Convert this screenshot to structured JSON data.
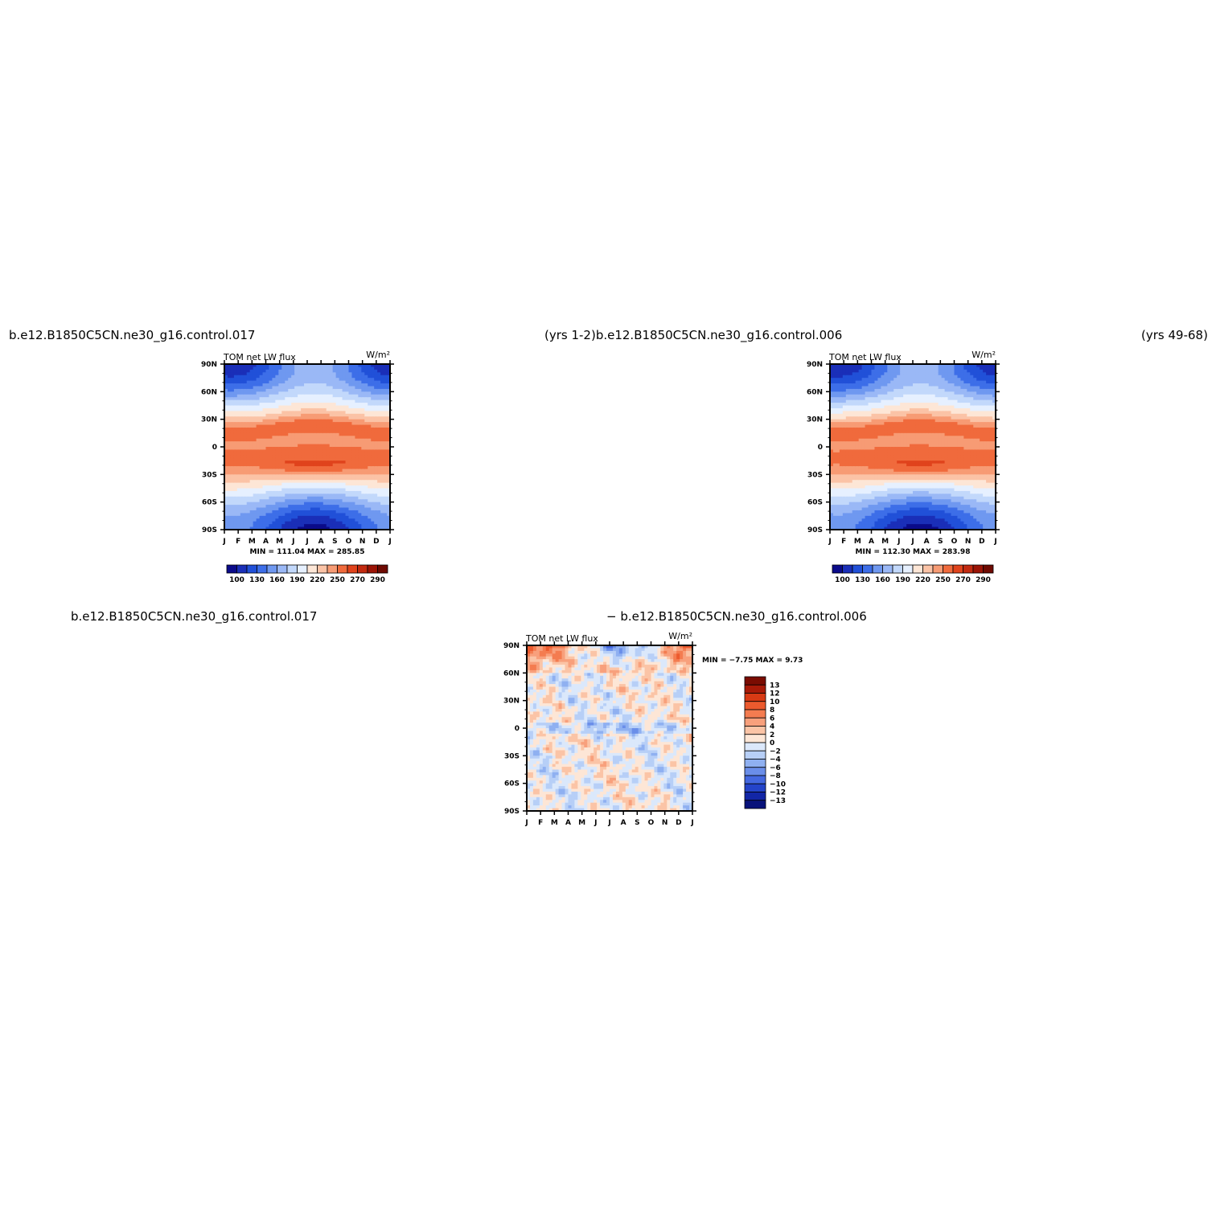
{
  "titles": {
    "top_left": "b.e12.B1850C5CN.ne30_g16.control.017",
    "top_mid": "(yrs  1-2)b.e12.B1850C5CN.ne30_g16.control.006",
    "top_right": "(yrs  49-68)",
    "bottom_left": "b.e12.B1850C5CN.ne30_g16.control.017",
    "bottom_mid": "−  b.e12.B1850C5CN.ne30_g16.control.006"
  },
  "chart_data": [
    {
      "id": "panel-a",
      "type": "heatmap",
      "title": "TOM net LW flux",
      "units": "W/m²",
      "xlabel": "",
      "ylabel": "",
      "x_ticks": [
        "J",
        "F",
        "M",
        "A",
        "M",
        "J",
        "J",
        "A",
        "S",
        "O",
        "N",
        "D",
        "J"
      ],
      "y_ticks": [
        "90N",
        "60N",
        "30N",
        "0",
        "30S",
        "60S",
        "90S"
      ],
      "ylim": [
        -90,
        90
      ],
      "stats": "MIN = 111.04 MAX = 285.85",
      "min": 111.04,
      "max": 285.85,
      "colorbar": {
        "levels": [
          100,
          115,
          130,
          145,
          160,
          175,
          190,
          205,
          220,
          235,
          250,
          265,
          270,
          280,
          290
        ],
        "labels": [
          "100",
          "130",
          "160",
          "190",
          "220",
          "250",
          "270",
          "290"
        ],
        "colors": [
          "#0b0b8a",
          "#1a2fb8",
          "#2150d8",
          "#3d6ee8",
          "#6f98f0",
          "#9ab8f6",
          "#c2d8fb",
          "#e6f0ff",
          "#fde6d6",
          "#fbc3a6",
          "#f79b74",
          "#f06a3c",
          "#e0431c",
          "#c22a10",
          "#9b1406",
          "#6e0a02"
        ]
      }
    },
    {
      "id": "panel-b",
      "type": "heatmap",
      "title": "TOM net LW flux",
      "units": "W/m²",
      "xlabel": "",
      "ylabel": "",
      "x_ticks": [
        "J",
        "F",
        "M",
        "A",
        "M",
        "J",
        "J",
        "A",
        "S",
        "O",
        "N",
        "D",
        "J"
      ],
      "y_ticks": [
        "90N",
        "60N",
        "30N",
        "0",
        "30S",
        "60S",
        "90S"
      ],
      "ylim": [
        -90,
        90
      ],
      "stats": "MIN = 112.30 MAX = 283.98",
      "min": 112.3,
      "max": 283.98,
      "colorbar": {
        "labels": [
          "100",
          "130",
          "160",
          "190",
          "220",
          "250",
          "270",
          "290"
        ]
      }
    },
    {
      "id": "panel-diff",
      "type": "heatmap",
      "title": "TOM net LW flux",
      "units": "W/m²",
      "xlabel": "",
      "ylabel": "",
      "x_ticks": [
        "J",
        "F",
        "M",
        "A",
        "M",
        "J",
        "J",
        "A",
        "S",
        "O",
        "N",
        "D",
        "J"
      ],
      "y_ticks": [
        "90N",
        "60N",
        "30N",
        "0",
        "30S",
        "60S",
        "90S"
      ],
      "ylim": [
        -90,
        90
      ],
      "stats": "MIN =   −7.75 MAX =    9.73",
      "min": -7.75,
      "max": 9.73,
      "colorbar": {
        "labels": [
          "13",
          "12",
          "10",
          "8",
          "6",
          "4",
          "2",
          "0",
          "−2",
          "−4",
          "−6",
          "−8",
          "−10",
          "−12",
          "−13"
        ],
        "colors": [
          "#7a0c02",
          "#a81a08",
          "#d83a14",
          "#ec5a2e",
          "#f47c50",
          "#f8a07c",
          "#fbc4a6",
          "#fde6d6",
          "#dbe8fb",
          "#b7cff7",
          "#8fb0f1",
          "#6a8ee9",
          "#4468e0",
          "#2444c9",
          "#1226a6",
          "#08127a"
        ]
      }
    }
  ]
}
